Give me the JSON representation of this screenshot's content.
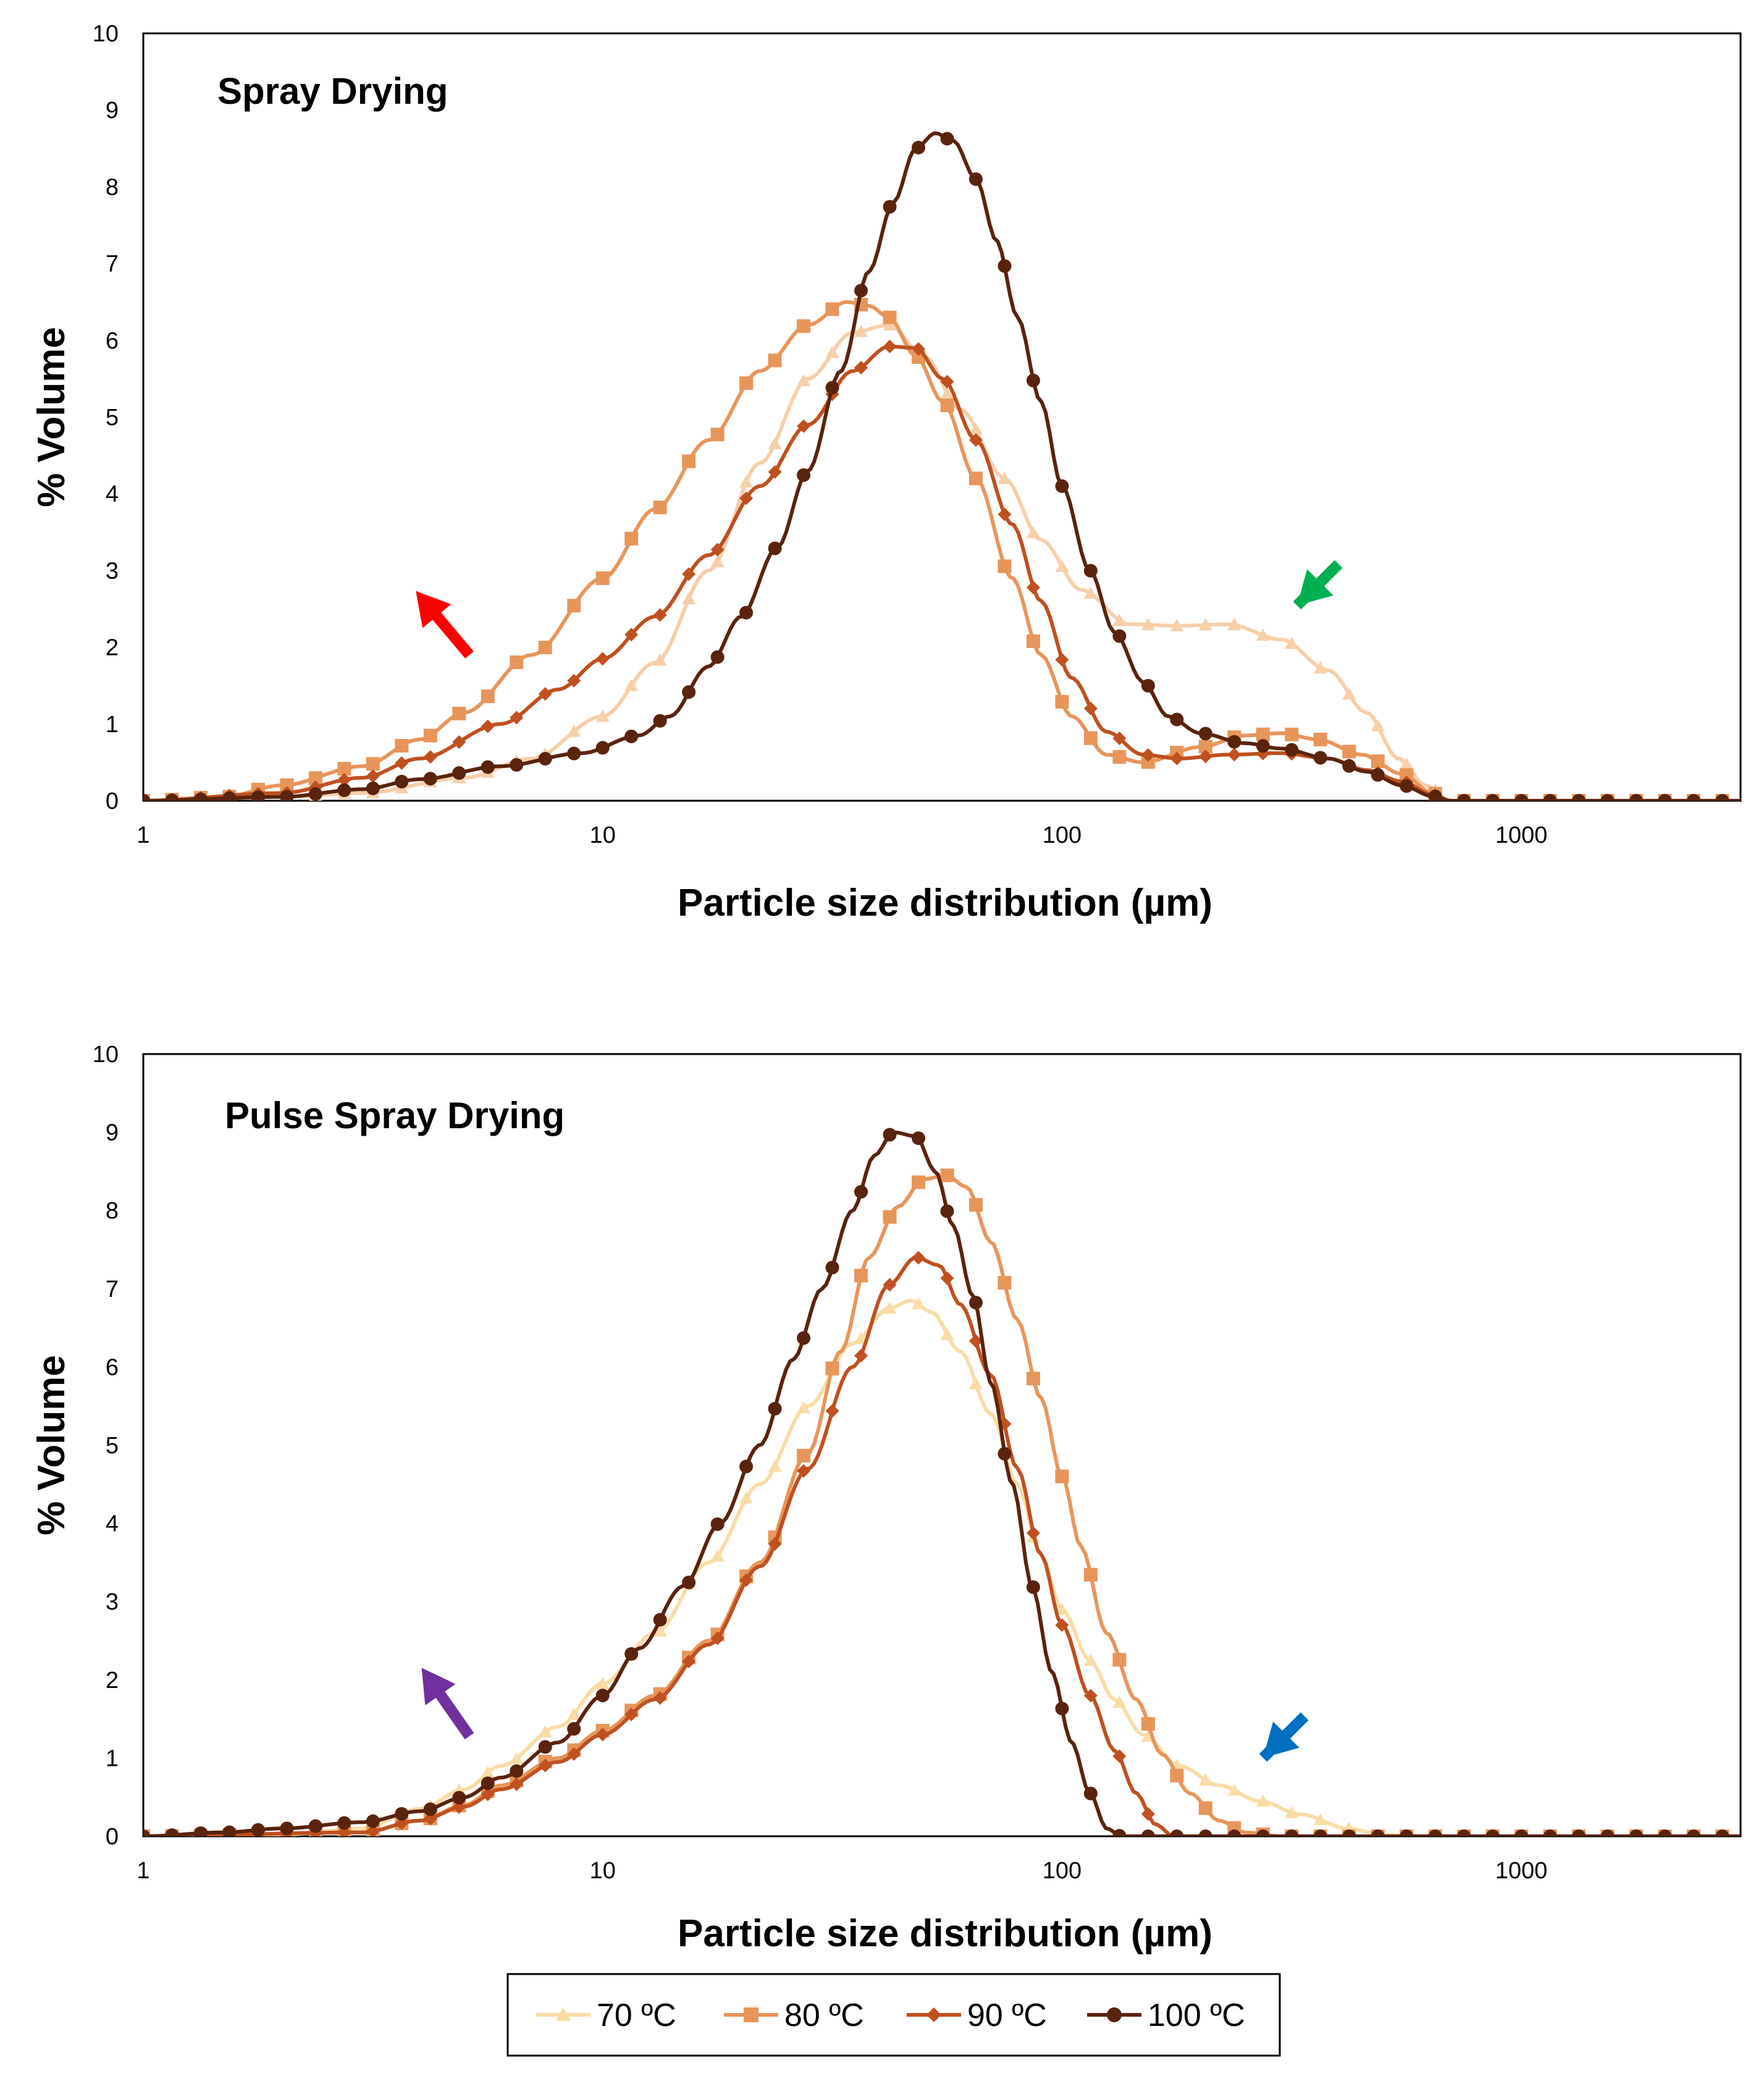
{
  "colors": {
    "c70_top": "#f7cfa9",
    "c70_bottom": "#f9dca6",
    "c80": "#e8955a",
    "c90": "#c0501f",
    "c100": "#5a230e",
    "arrow_red": "#ff0000",
    "arrow_green": "#00b050",
    "arrow_purple": "#7030a0",
    "arrow_blue": "#0070c0"
  },
  "legend": {
    "items": [
      {
        "label": "70 ºC",
        "marker": "triangle"
      },
      {
        "label": "80 ºC",
        "marker": "square"
      },
      {
        "label": "90 ºC",
        "marker": "diamond"
      },
      {
        "label": "100 ºC",
        "marker": "circle"
      }
    ]
  },
  "chart_data": [
    {
      "type": "line",
      "panel_title": "Spray Drying",
      "xlabel": "Particle size distribution (µm)",
      "ylabel": "% Volume",
      "xscale": "log",
      "xlim": [
        1,
        3000
      ],
      "ylim": [
        0,
        10
      ],
      "yticks": [
        "0",
        "1",
        "2",
        "3",
        "4",
        "5",
        "6",
        "7",
        "8",
        "9",
        "10"
      ],
      "xticks": [
        "1",
        "10",
        "100",
        "1000"
      ],
      "annotations": [
        {
          "color": "red",
          "points_to": "small-particle shoulder ~5 µm"
        },
        {
          "color": "green",
          "points_to": "large-particle shoulder ~300 µm"
        }
      ],
      "series": [
        {
          "name": "70 ºC",
          "knots": [
            [
              1,
              0
            ],
            [
              2,
              0.05
            ],
            [
              3,
              0.1
            ],
            [
              5,
              0.3
            ],
            [
              7,
              0.55
            ],
            [
              10,
              1.1
            ],
            [
              13,
              1.8
            ],
            [
              17,
              3.0
            ],
            [
              22,
              4.4
            ],
            [
              28,
              5.5
            ],
            [
              35,
              6.1
            ],
            [
              42,
              6.2
            ],
            [
              50,
              5.8
            ],
            [
              60,
              5.1
            ],
            [
              75,
              4.2
            ],
            [
              90,
              3.4
            ],
            [
              110,
              2.75
            ],
            [
              140,
              2.3
            ],
            [
              180,
              2.28
            ],
            [
              230,
              2.3
            ],
            [
              300,
              2.1
            ],
            [
              380,
              1.7
            ],
            [
              460,
              1.15
            ],
            [
              540,
              0.55
            ],
            [
              620,
              0.2
            ],
            [
              700,
              0
            ],
            [
              3000,
              0
            ]
          ]
        },
        {
          "name": "80 ºC",
          "knots": [
            [
              1,
              0
            ],
            [
              1.5,
              0.05
            ],
            [
              2,
              0.2
            ],
            [
              3,
              0.45
            ],
            [
              4,
              0.8
            ],
            [
              5,
              1.15
            ],
            [
              7,
              1.9
            ],
            [
              10,
              2.9
            ],
            [
              13,
              3.8
            ],
            [
              17,
              4.7
            ],
            [
              22,
              5.6
            ],
            [
              28,
              6.2
            ],
            [
              34,
              6.5
            ],
            [
              38,
              6.45
            ],
            [
              42,
              6.3
            ],
            [
              48,
              5.8
            ],
            [
              55,
              5.2
            ],
            [
              65,
              4.2
            ],
            [
              78,
              2.9
            ],
            [
              90,
              1.9
            ],
            [
              105,
              1.1
            ],
            [
              125,
              0.6
            ],
            [
              150,
              0.5
            ],
            [
              200,
              0.7
            ],
            [
              250,
              0.85
            ],
            [
              300,
              0.88
            ],
            [
              360,
              0.8
            ],
            [
              450,
              0.6
            ],
            [
              550,
              0.35
            ],
            [
              640,
              0.1
            ],
            [
              700,
              0
            ],
            [
              3000,
              0
            ]
          ]
        },
        {
          "name": "90 ºC",
          "knots": [
            [
              1,
              0
            ],
            [
              2,
              0.1
            ],
            [
              3,
              0.3
            ],
            [
              4,
              0.55
            ],
            [
              6,
              1.0
            ],
            [
              8,
              1.45
            ],
            [
              10,
              1.85
            ],
            [
              13,
              2.4
            ],
            [
              17,
              3.2
            ],
            [
              22,
              4.1
            ],
            [
              28,
              4.9
            ],
            [
              35,
              5.6
            ],
            [
              42,
              5.92
            ],
            [
              48,
              5.9
            ],
            [
              55,
              5.5
            ],
            [
              65,
              4.7
            ],
            [
              78,
              3.6
            ],
            [
              90,
              2.6
            ],
            [
              105,
              1.6
            ],
            [
              125,
              0.9
            ],
            [
              150,
              0.6
            ],
            [
              180,
              0.55
            ],
            [
              230,
              0.6
            ],
            [
              300,
              0.62
            ],
            [
              380,
              0.55
            ],
            [
              460,
              0.4
            ],
            [
              550,
              0.25
            ],
            [
              640,
              0.08
            ],
            [
              700,
              0
            ],
            [
              3000,
              0
            ]
          ]
        },
        {
          "name": "100 ºC",
          "knots": [
            [
              1,
              0
            ],
            [
              2,
              0.05
            ],
            [
              3,
              0.15
            ],
            [
              4,
              0.28
            ],
            [
              6,
              0.45
            ],
            [
              9,
              0.62
            ],
            [
              12,
              0.85
            ],
            [
              14,
              1.1
            ],
            [
              17,
              1.75
            ],
            [
              20,
              2.4
            ],
            [
              24,
              3.3
            ],
            [
              28,
              4.3
            ],
            [
              33,
              5.6
            ],
            [
              38,
              6.9
            ],
            [
              43,
              7.8
            ],
            [
              48,
              8.5
            ],
            [
              53,
              8.7
            ],
            [
              58,
              8.6
            ],
            [
              65,
              8.1
            ],
            [
              72,
              7.3
            ],
            [
              80,
              6.3
            ],
            [
              90,
              5.2
            ],
            [
              100,
              4.1
            ],
            [
              115,
              3.0
            ],
            [
              130,
              2.2
            ],
            [
              150,
              1.55
            ],
            [
              170,
              1.1
            ],
            [
              200,
              0.88
            ],
            [
              250,
              0.75
            ],
            [
              300,
              0.68
            ],
            [
              380,
              0.55
            ],
            [
              460,
              0.38
            ],
            [
              550,
              0.2
            ],
            [
              640,
              0.06
            ],
            [
              700,
              0
            ],
            [
              3000,
              0
            ]
          ]
        }
      ]
    },
    {
      "type": "line",
      "panel_title": "Pulse Spray Drying",
      "xlabel": "Particle size distribution (µm)",
      "ylabel": "% Volume",
      "xscale": "log",
      "xlim": [
        1,
        3000
      ],
      "ylim": [
        0,
        10
      ],
      "yticks": [
        "0",
        "1",
        "2",
        "3",
        "4",
        "5",
        "6",
        "7",
        "8",
        "9",
        "10"
      ],
      "xticks": [
        "1",
        "10",
        "100",
        "1000"
      ],
      "annotations": [
        {
          "color": "purple",
          "points_to": "small-particle tail ~5 µm"
        },
        {
          "color": "blue",
          "points_to": "large-particle tail ~250 µm"
        }
      ],
      "series": [
        {
          "name": "70 ºC",
          "knots": [
            [
              1,
              0
            ],
            [
              2,
              0.02
            ],
            [
              3,
              0.1
            ],
            [
              4,
              0.35
            ],
            [
              5,
              0.6
            ],
            [
              6,
              0.9
            ],
            [
              8,
              1.4
            ],
            [
              10,
              1.95
            ],
            [
              13,
              2.6
            ],
            [
              17,
              3.5
            ],
            [
              22,
              4.5
            ],
            [
              28,
              5.5
            ],
            [
              35,
              6.3
            ],
            [
              42,
              6.75
            ],
            [
              47,
              6.85
            ],
            [
              52,
              6.7
            ],
            [
              60,
              6.2
            ],
            [
              70,
              5.4
            ],
            [
              80,
              4.5
            ],
            [
              90,
              3.6
            ],
            [
              100,
              2.9
            ],
            [
              115,
              2.25
            ],
            [
              130,
              1.75
            ],
            [
              150,
              1.3
            ],
            [
              180,
              0.9
            ],
            [
              220,
              0.65
            ],
            [
              270,
              0.45
            ],
            [
              330,
              0.28
            ],
            [
              420,
              0.1
            ],
            [
              500,
              0.02
            ],
            [
              600,
              0
            ],
            [
              3000,
              0
            ]
          ]
        },
        {
          "name": "80 ºC",
          "knots": [
            [
              1,
              0
            ],
            [
              3,
              0.05
            ],
            [
              4,
              0.2
            ],
            [
              5,
              0.4
            ],
            [
              6,
              0.65
            ],
            [
              8,
              1.0
            ],
            [
              10,
              1.35
            ],
            [
              13,
              1.8
            ],
            [
              17,
              2.5
            ],
            [
              22,
              3.5
            ],
            [
              28,
              4.9
            ],
            [
              33,
              6.2
            ],
            [
              38,
              7.4
            ],
            [
              44,
              8.05
            ],
            [
              50,
              8.4
            ],
            [
              56,
              8.45
            ],
            [
              62,
              8.3
            ],
            [
              70,
              7.6
            ],
            [
              80,
              6.6
            ],
            [
              90,
              5.6
            ],
            [
              100,
              4.6
            ],
            [
              110,
              3.7
            ],
            [
              125,
              2.6
            ],
            [
              145,
              1.75
            ],
            [
              165,
              1.05
            ],
            [
              190,
              0.55
            ],
            [
              220,
              0.2
            ],
            [
              250,
              0.05
            ],
            [
              300,
              0
            ],
            [
              3000,
              0
            ]
          ]
        },
        {
          "name": "90 ºC",
          "knots": [
            [
              1,
              0
            ],
            [
              3,
              0.05
            ],
            [
              4,
              0.2
            ],
            [
              5,
              0.38
            ],
            [
              6,
              0.6
            ],
            [
              8,
              0.95
            ],
            [
              10,
              1.3
            ],
            [
              13,
              1.75
            ],
            [
              17,
              2.45
            ],
            [
              22,
              3.45
            ],
            [
              28,
              4.7
            ],
            [
              35,
              6.0
            ],
            [
              42,
              7.05
            ],
            [
              48,
              7.4
            ],
            [
              54,
              7.3
            ],
            [
              60,
              6.8
            ],
            [
              70,
              5.9
            ],
            [
              80,
              4.7
            ],
            [
              90,
              3.6
            ],
            [
              100,
              2.7
            ],
            [
              115,
              1.8
            ],
            [
              130,
              1.1
            ],
            [
              145,
              0.55
            ],
            [
              160,
              0.15
            ],
            [
              175,
              0
            ],
            [
              3000,
              0
            ]
          ]
        },
        {
          "name": "100 ºC",
          "knots": [
            [
              1,
              0
            ],
            [
              1.5,
              0.05
            ],
            [
              2,
              0.1
            ],
            [
              3,
              0.18
            ],
            [
              4,
              0.32
            ],
            [
              5,
              0.5
            ],
            [
              6,
              0.75
            ],
            [
              8,
              1.2
            ],
            [
              10,
              1.8
            ],
            [
              12,
              2.4
            ],
            [
              15,
              3.2
            ],
            [
              18,
              4.0
            ],
            [
              22,
              5.0
            ],
            [
              26,
              6.1
            ],
            [
              30,
              7.0
            ],
            [
              35,
              8.0
            ],
            [
              39,
              8.7
            ],
            [
              43,
              9.0
            ],
            [
              48,
              8.95
            ],
            [
              53,
              8.5
            ],
            [
              58,
              7.8
            ],
            [
              64,
              6.9
            ],
            [
              70,
              5.8
            ],
            [
              78,
              4.5
            ],
            [
              86,
              3.2
            ],
            [
              95,
              2.1
            ],
            [
              105,
              1.2
            ],
            [
              115,
              0.55
            ],
            [
              125,
              0.1
            ],
            [
              135,
              0
            ],
            [
              3000,
              0
            ]
          ]
        }
      ]
    }
  ]
}
